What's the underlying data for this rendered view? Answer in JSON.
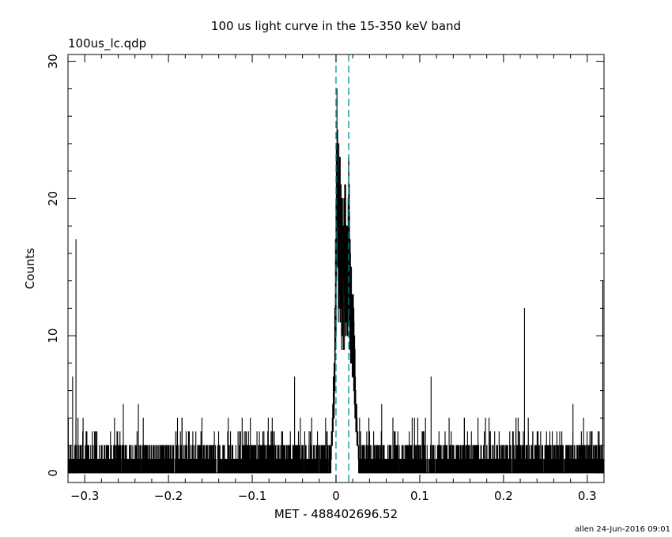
{
  "chart_data": {
    "type": "line",
    "title": "100 us light curve in the 15-350 keV band",
    "subtitle": "100us_lc.qdp",
    "xlabel": "MET - 488402696.52",
    "ylabel": "Counts",
    "footer": "allen 24-Jun-2016 09:01",
    "xlim": [
      -0.32,
      0.32
    ],
    "ylim": [
      -0.7,
      30.5
    ],
    "xticks": [
      -0.3,
      -0.2,
      -0.1,
      0,
      0.1,
      0.2,
      0.3
    ],
    "xtick_labels": [
      "−0.3",
      "−0.2",
      "−0.1",
      "0",
      "0.1",
      "0.2",
      "0.3"
    ],
    "yticks": [
      0,
      10,
      20,
      30
    ],
    "ytick_labels": [
      "0",
      "10",
      "20",
      "30"
    ],
    "bin_width": 0.0001,
    "background_counts": [
      0,
      1,
      2
    ],
    "vertical_lines": [
      {
        "x": 0.0,
        "style": "dashed",
        "color": "#008b8b"
      },
      {
        "x": 0.0152,
        "style": "dashed",
        "color": "#008b8b"
      }
    ],
    "series": [
      {
        "style": "histogram-step",
        "color": "#000000",
        "peak_envelope": {
          "x": [
            -0.006,
            -0.004,
            -0.002,
            0.0,
            0.001,
            0.003,
            0.005,
            0.007,
            0.009,
            0.011,
            0.013,
            0.015,
            0.017,
            0.019,
            0.021,
            0.023,
            0.025,
            0.027
          ],
          "y": [
            2,
            5,
            9,
            21,
            27,
            24,
            22,
            20,
            18,
            23,
            17,
            25,
            16,
            14,
            12,
            8,
            4,
            2
          ]
        },
        "spikes": {
          "x": [
            -0.3145,
            -0.3105,
            -0.302,
            -0.254,
            -0.236,
            -0.184,
            -0.0495,
            0.0545,
            0.1135,
            0.225,
            0.283,
            0.3185
          ],
          "y": [
            7,
            17,
            4,
            5,
            5,
            4,
            7,
            5,
            7,
            12,
            5,
            14
          ]
        }
      }
    ]
  }
}
